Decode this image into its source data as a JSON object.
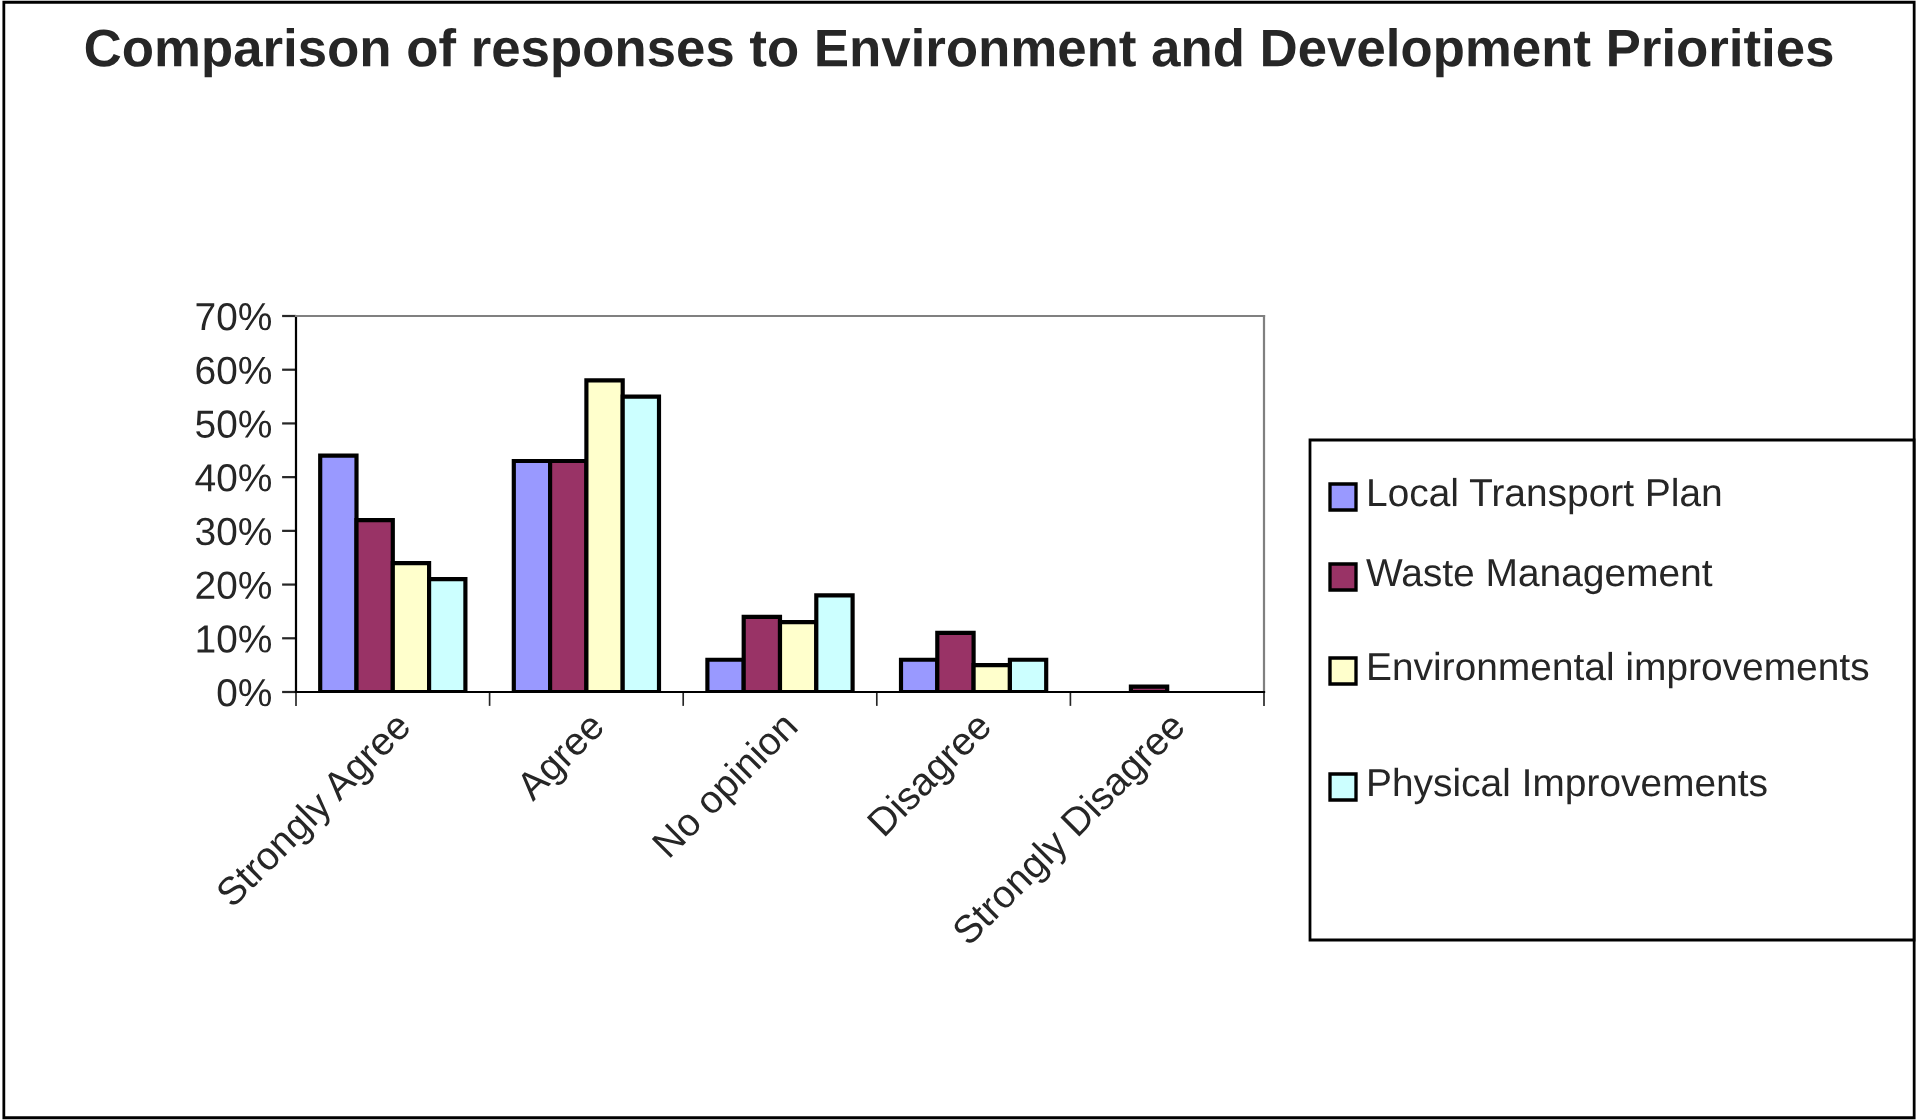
{
  "chart_data": {
    "type": "bar",
    "title": "Comparison of responses to Environment and Development Priorities",
    "categories": [
      "Strongly Agree",
      "Agree",
      "No opinion",
      "Disagree",
      "Strongly Disagree"
    ],
    "series": [
      {
        "name": "Local Transport Plan",
        "color": "#9999ff",
        "values": [
          0.44,
          0.43,
          0.06,
          0.06,
          0
        ]
      },
      {
        "name": "Waste Management",
        "color": "#993366",
        "values": [
          0.32,
          0.43,
          0.14,
          0.11,
          0.01
        ]
      },
      {
        "name": "Environmental improvements",
        "color": "#ffffcc",
        "values": [
          0.24,
          0.58,
          0.13,
          0.05,
          0
        ]
      },
      {
        "name": "Physical Improvements",
        "color": "#ccffff",
        "values": [
          0.21,
          0.55,
          0.18,
          0.06,
          0
        ]
      }
    ],
    "ylim": [
      0,
      0.7
    ],
    "yticks": [
      {
        "value": 0,
        "label": "0%"
      },
      {
        "value": 0.1,
        "label": "10%"
      },
      {
        "value": 0.2,
        "label": "20%"
      },
      {
        "value": 0.3,
        "label": "30%"
      },
      {
        "value": 0.4,
        "label": "40%"
      },
      {
        "value": 0.5,
        "label": "50%"
      },
      {
        "value": 0.6,
        "label": "60%"
      },
      {
        "value": 0.7,
        "label": "70%"
      }
    ],
    "grid": false,
    "legend": "right"
  }
}
